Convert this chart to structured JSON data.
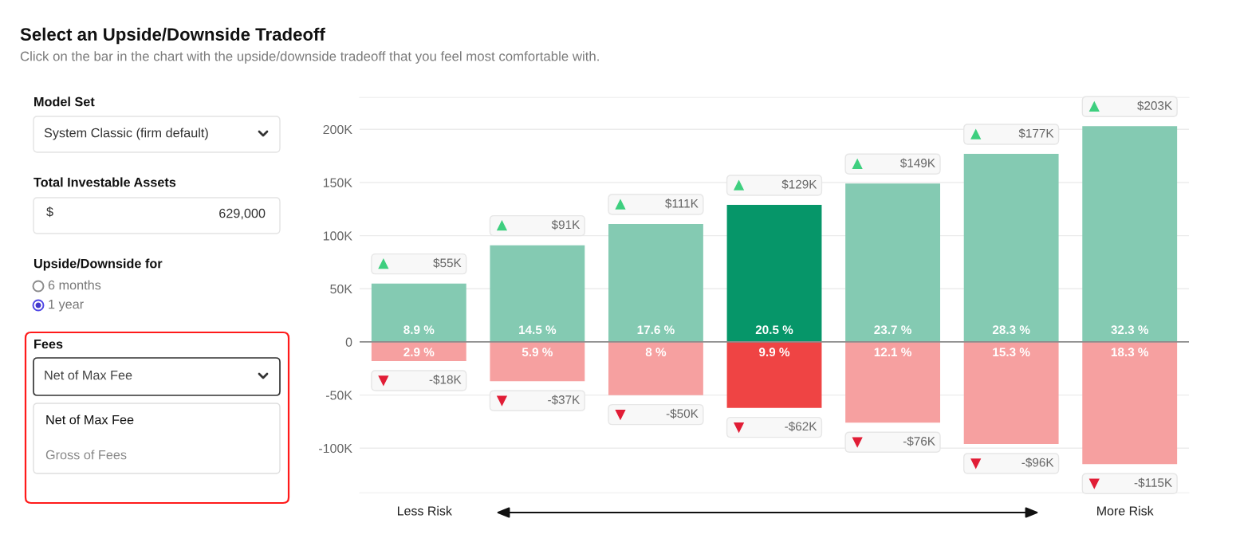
{
  "chart_data": {
    "type": "bar",
    "title": "Select an Upside/Downside Tradeoff",
    "subtitle": "Click on the bar in the chart with the upside/downside tradeoff that you feel most comfortable with.",
    "categories": [
      null,
      null,
      null,
      null,
      null,
      null,
      null
    ],
    "stacked": true,
    "series": [
      {
        "colors": [
          "#84cab2",
          "#84cab2",
          "#84cab2",
          "#069669",
          "#84cab2",
          "#84cab2",
          "#84cab2"
        ],
        "values": [
          55000,
          91000,
          111000,
          129000,
          149000,
          177000,
          203000
        ],
        "value_labels": [
          "$55K",
          "$91K",
          "$111K",
          "$129K",
          "$149K",
          "$177K",
          "$203K"
        ]
      },
      {
        "colors": [
          "#f6a0a0",
          "#f6a0a0",
          "#f6a0a0",
          "#ef4444",
          "#f6a0a0",
          "#f6a0a0",
          "#f6a0a0"
        ],
        "values": [
          -18000,
          -37000,
          -50000,
          -62000,
          -76000,
          -96000,
          -115000
        ],
        "value_labels": [
          "-$18K",
          "-$37K",
          "-$50K",
          "-$62K",
          "-$76K",
          "-$96K",
          "-$115K"
        ]
      }
    ],
    "ylim": [
      -142000,
      230000
    ],
    "yticks": [
      {
        "value": -100000,
        "label": "-100K"
      },
      {
        "value": -50000,
        "label": "-50K"
      },
      0,
      {
        "value": 50000,
        "label": "50K"
      },
      {
        "value": 100000,
        "label": "100K"
      },
      {
        "value": 150000,
        "label": "150K"
      },
      {
        "value": 200000,
        "label": "200K"
      }
    ],
    "grid": "y",
    "tick_labels": "y",
    "annotations": [
      "8.9 %",
      "14.5 %",
      "17.6 %",
      "20.5 %",
      "23.7 %",
      "28.3 %",
      "32.3 %",
      "2.9 %",
      "5.9 %",
      "8 %",
      "9.9 %",
      "12.1 %",
      "15.3 %",
      "18.3 %",
      "Less Risk",
      "More Risk",
      "Model Set",
      "System Classic (firm default)",
      "Total Investable Assets",
      "$",
      "629,000",
      "Upside/Downside for",
      "6 months",
      "1 year",
      "Fees",
      "Net of Max Fee",
      "Net of Max Fee",
      "Gross of Fees"
    ]
  }
}
